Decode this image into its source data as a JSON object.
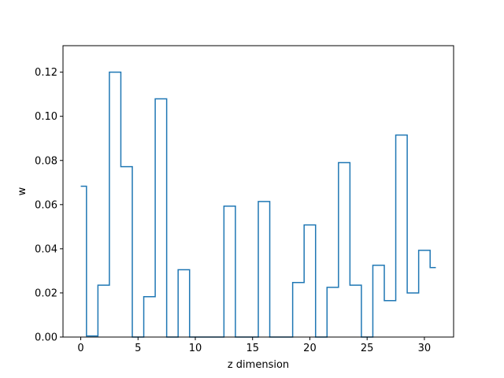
{
  "chart_data": {
    "type": "line",
    "drawstyle": "steps-mid",
    "xlabel": "z dimension",
    "ylabel": "w",
    "xlim": [
      -1.55,
      32.55
    ],
    "ylim": [
      0.0,
      0.132
    ],
    "xticks": [
      0,
      5,
      10,
      15,
      20,
      25,
      30
    ],
    "yticks": [
      0.0,
      0.02,
      0.04,
      0.06,
      0.08,
      0.1,
      0.12
    ],
    "xtick_labels": [
      "0",
      "5",
      "10",
      "15",
      "20",
      "25",
      "30"
    ],
    "ytick_labels": [
      "0.00",
      "0.02",
      "0.04",
      "0.06",
      "0.08",
      "0.10",
      "0.12"
    ],
    "grid": false,
    "series": [
      {
        "color": "#1f77b4",
        "x": [
          0,
          1,
          2,
          3,
          4,
          5,
          6,
          7,
          8,
          9,
          10,
          11,
          12,
          13,
          14,
          15,
          16,
          17,
          18,
          19,
          20,
          21,
          22,
          23,
          24,
          25,
          26,
          27,
          28,
          29,
          30,
          31
        ],
        "y": [
          0.0683,
          0.0005,
          0.0235,
          0.12,
          0.0772,
          0.0,
          0.0183,
          0.1079,
          0.0,
          0.0305,
          0.0,
          0.0,
          0.0,
          0.0593,
          0.0,
          0.0,
          0.0614,
          0.0,
          0.0,
          0.0247,
          0.0508,
          0.0,
          0.0225,
          0.079,
          0.0235,
          0.0,
          0.0325,
          0.0165,
          0.0915,
          0.02,
          0.0393,
          0.0315
        ]
      }
    ]
  }
}
